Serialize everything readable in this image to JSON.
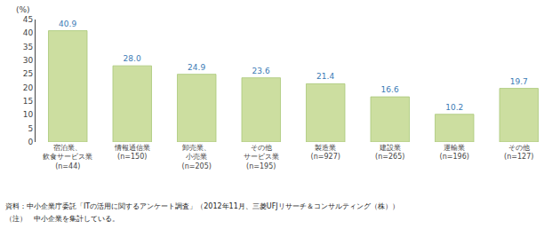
{
  "chart_data": {
    "type": "bar",
    "categories": [
      "宿泊業、\n飲食サービス業\n(n=44)",
      "情報通信業\n(n=150)",
      "卸売業、\n小売業\n(n=205)",
      "その他\nサービス業\n(n=195)",
      "製造業\n(n=927)",
      "建設業\n(n=265)",
      "運輸業\n(n=196)",
      "その他\n(n=127)"
    ],
    "values": [
      40.9,
      28.0,
      24.9,
      23.6,
      21.4,
      16.6,
      10.2,
      19.7
    ],
    "value_labels": [
      "40.9",
      "28.0",
      "24.9",
      "23.6",
      "21.4",
      "16.6",
      "10.2",
      "19.7"
    ],
    "color": "#ccdea0",
    "ylabel": "(%)",
    "ylim": [
      0,
      45
    ],
    "yticks": [
      0,
      5,
      10,
      15,
      20,
      25,
      30,
      35,
      40,
      45
    ],
    "grid": false,
    "data_labels": true,
    "annotations": [
      "資料：中小企業庁委託「ITの活用に関するアンケート調査」（2012年11月、三菱UFJリサーチ＆コンサルティング（株））",
      "（注）　中小企業を集計している。"
    ]
  }
}
